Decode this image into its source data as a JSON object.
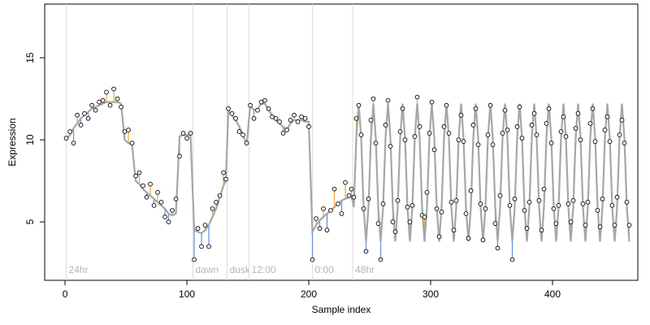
{
  "chart_data": {
    "type": "scatter",
    "x_label": "Sample index",
    "y_label": "Expression",
    "xlim": [
      -16.7,
      470
    ],
    "ylim": [
      1.44,
      18.27
    ],
    "xticks": [
      0,
      100,
      200,
      300,
      400
    ],
    "yticks": [
      5,
      10,
      15
    ],
    "point_color": "#000000",
    "fit_color": "#a6a6a6",
    "above_color": "#f0a830",
    "below_color": "#5b8fe0",
    "annotation_color": "#dcdcdc",
    "annotations": [
      {
        "x": 1,
        "label": "24hr"
      },
      {
        "x": 105,
        "label": "dawn"
      },
      {
        "x": 133,
        "label": "dusk"
      },
      {
        "x": 151,
        "label": "12:00"
      },
      {
        "x": 203,
        "label": "0:00"
      },
      {
        "x": 236,
        "label": "48hr"
      }
    ],
    "x": [
      1,
      4,
      7,
      10,
      13,
      16,
      19,
      22,
      25,
      28,
      31,
      34,
      37,
      40,
      43,
      46,
      49,
      52,
      55,
      58,
      61,
      64,
      67,
      70,
      73,
      76,
      79,
      82,
      85,
      88,
      91,
      94,
      97,
      100,
      103,
      106,
      109,
      112,
      115,
      118,
      121,
      124,
      127,
      130,
      132,
      134,
      137,
      140,
      143,
      146,
      149,
      152,
      155,
      158,
      161,
      164,
      167,
      170,
      173,
      176,
      179,
      182,
      185,
      188,
      191,
      194,
      197,
      200,
      203,
      206,
      209,
      212,
      215,
      218,
      221,
      224,
      227,
      230,
      233,
      235,
      237,
      239,
      241,
      243,
      245,
      247,
      249,
      251,
      253,
      255,
      257,
      259,
      261,
      263,
      265,
      267,
      269,
      271,
      273,
      275,
      277,
      279,
      281,
      283,
      285,
      287,
      289,
      291,
      293,
      295,
      297,
      299,
      301,
      303,
      305,
      307,
      309,
      311,
      313,
      315,
      317,
      319,
      321,
      323,
      325,
      327,
      329,
      331,
      333,
      335,
      337,
      339,
      341,
      343,
      345,
      347,
      349,
      351,
      353,
      355,
      357,
      359,
      361,
      363,
      365,
      367,
      369,
      371,
      373,
      375,
      377,
      379,
      381,
      383,
      385,
      387,
      389,
      391,
      393,
      395,
      397,
      399,
      401,
      403,
      405,
      407,
      409,
      411,
      413,
      415,
      417,
      419,
      421,
      423,
      425,
      427,
      429,
      431,
      433,
      435,
      437,
      439,
      441,
      443,
      445,
      447,
      449,
      451,
      453,
      455,
      457,
      459,
      461,
      463
    ],
    "values": [
      10.1,
      10.5,
      9.8,
      11.5,
      10.9,
      11.6,
      11.3,
      12.1,
      11.8,
      12.3,
      12.4,
      12.9,
      12.1,
      13.1,
      12.5,
      12,
      10.5,
      10.6,
      9.8,
      7.8,
      8,
      7.2,
      6.5,
      7.3,
      6,
      6.8,
      6.2,
      5.3,
      5,
      5.7,
      6.4,
      9,
      10.4,
      10.1,
      10.4,
      2.7,
      4.6,
      3.5,
      4.8,
      3.5,
      5.8,
      6.2,
      6.6,
      8,
      7.6,
      11.9,
      11.6,
      11.3,
      10.5,
      10.3,
      9.8,
      12.1,
      11.3,
      11.8,
      12.3,
      12.4,
      11.9,
      11.4,
      11.3,
      11.1,
      10.4,
      10.6,
      11.2,
      11.5,
      11.1,
      11.4,
      11.3,
      10.8,
      2.7,
      5.2,
      4.6,
      5.8,
      4.5,
      5.7,
      7,
      6.1,
      5.5,
      7.4,
      6.6,
      7,
      6.5,
      11.3,
      12.1,
      10.3,
      5.8,
      3.2,
      6.4,
      11.2,
      12.5,
      9.8,
      4.9,
      2.7,
      6.1,
      10.9,
      12.4,
      9.6,
      5.0,
      4.4,
      6.3,
      10.5,
      11.9,
      10.0,
      5.9,
      5.0,
      6.0,
      10.2,
      12.6,
      10.8,
      5.4,
      5.3,
      6.8,
      10.4,
      12.3,
      9.4,
      5.8,
      4.1,
      5.6,
      10.8,
      12.1,
      10.4,
      6.2,
      4.5,
      6.3,
      10.0,
      11.5,
      9.9,
      5.5,
      4.0,
      6.9,
      10.9,
      11.9,
      9.7,
      6.1,
      3.9,
      5.8,
      10.3,
      12.1,
      9.7,
      4.9,
      3.4,
      6.6,
      10.4,
      11.8,
      10.6,
      6.0,
      2.7,
      6.4,
      10.8,
      12.0,
      10.1,
      5.7,
      4.6,
      6.2,
      10.9,
      11.6,
      10.3,
      6.3,
      4.5,
      7.0,
      11.0,
      11.9,
      9.8,
      5.8,
      4.9,
      6.0,
      10.5,
      11.4,
      10.2,
      6.1,
      5.0,
      6.3,
      10.7,
      11.6,
      10.0,
      6.1,
      4.8,
      6.2,
      11.0,
      11.9,
      9.9,
      5.7,
      4.7,
      6.4,
      10.6,
      11.4,
      9.9,
      6.0,
      4.8,
      6.5,
      10.3,
      11.2,
      9.8,
      6.2,
      4.8
    ],
    "fit": [
      10,
      10.3,
      10.7,
      11,
      11.3,
      11.5,
      11.7,
      11.9,
      12,
      12.1,
      12.2,
      12.3,
      12.3,
      12.3,
      12.3,
      12.2,
      10,
      9.8,
      9.7,
      7.5,
      7.3,
      7,
      6.8,
      6.6,
      6.4,
      6.2,
      6,
      5.8,
      5.5,
      5.4,
      5.5,
      10.2,
      10.3,
      10.3,
      10.3,
      4.5,
      4.4,
      4.3,
      4.5,
      4.8,
      5.3,
      5.8,
      6.5,
      7.2,
      7.5,
      11.8,
      11.5,
      11.2,
      10.8,
      10.3,
      9.7,
      12.1,
      11.8,
      11.9,
      12.2,
      12.2,
      11.8,
      11.5,
      11.2,
      11,
      10.8,
      10.6,
      11,
      11.2,
      11.2,
      11.2,
      11.1,
      11.1,
      4.4,
      4.8,
      5.1,
      5.3,
      5.5,
      5.7,
      5.9,
      6.1,
      6.3,
      6.4,
      6.5,
      6.6,
      5.9,
      10.1,
      12.2,
      10.1,
      5.9,
      3.8,
      5.9,
      10.1,
      12.2,
      10.1,
      5.9,
      3.8,
      5.9,
      10.1,
      12.2,
      10.1,
      5.9,
      3.8,
      5.9,
      10.1,
      12.2,
      10.1,
      5.9,
      3.8,
      5.9,
      10.1,
      12.2,
      10.1,
      5.9,
      3.8,
      5.9,
      10.1,
      12.2,
      10.1,
      5.9,
      3.8,
      5.9,
      10.1,
      12.2,
      10.1,
      5.9,
      3.8,
      5.9,
      10.1,
      12.2,
      10.1,
      5.9,
      3.8,
      5.9,
      10.1,
      12.2,
      10.1,
      5.9,
      3.8,
      5.9,
      10.1,
      12.2,
      10.1,
      5.9,
      3.8,
      5.9,
      10.1,
      12.2,
      10.1,
      5.9,
      3.8,
      5.9,
      10.1,
      12.2,
      10.1,
      5.9,
      3.8,
      5.9,
      10.1,
      12.2,
      10.1,
      5.9,
      3.8,
      5.9,
      10.1,
      12.2,
      10.1,
      5.9,
      3.8,
      5.9,
      10.1,
      12.2,
      10.1,
      5.9,
      3.8,
      5.9,
      10.1,
      12.2,
      10.1,
      5.9,
      3.8,
      5.9,
      10.1,
      12.2,
      10.1,
      5.9,
      3.8,
      5.9,
      10.1,
      12.2,
      10.1,
      5.9,
      3.8,
      5.9,
      10.1,
      12.2,
      10.1,
      5.9,
      3.8
    ]
  }
}
